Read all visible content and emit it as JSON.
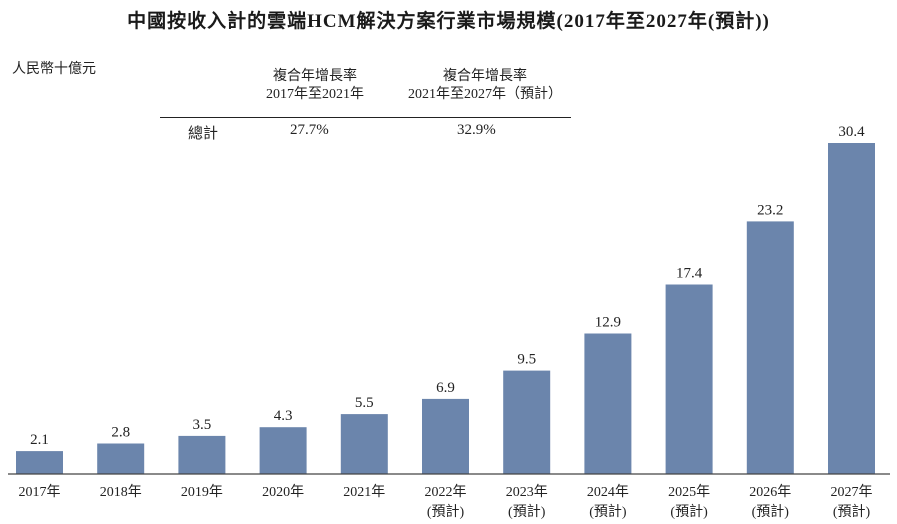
{
  "title": "中國按收入計的雲端HCM解決方案行業市場規模(2017年至2027年(預計))",
  "unit_label": "人民幣十億元",
  "cagr_table": {
    "col1_line1": "複合年增長率",
    "col1_line2": "2017年至2021年",
    "col2_line1": "複合年增長率",
    "col2_line2": "2021年至2027年（預計）",
    "row_label": "總計",
    "col1_value": "27.7%",
    "col2_value": "32.9%"
  },
  "colors": {
    "bar": "#6b85ac",
    "axis": "#444444"
  },
  "chart_data": {
    "type": "bar",
    "categories": [
      [
        "2017年"
      ],
      [
        "2018年"
      ],
      [
        "2019年"
      ],
      [
        "2020年"
      ],
      [
        "2021年"
      ],
      [
        "2022年",
        "(預計)"
      ],
      [
        "2023年",
        "(預計)"
      ],
      [
        "2024年",
        "(預計)"
      ],
      [
        "2025年",
        "(預計)"
      ],
      [
        "2026年",
        "(預計)"
      ],
      [
        "2027年",
        "(預計)"
      ]
    ],
    "values": [
      2.1,
      2.8,
      3.5,
      4.3,
      5.5,
      6.9,
      9.5,
      12.9,
      17.4,
      23.2,
      30.4
    ],
    "value_labels": [
      "2.1",
      "2.8",
      "3.5",
      "4.3",
      "5.5",
      "6.9",
      "9.5",
      "12.9",
      "17.4",
      "23.2",
      "30.4"
    ],
    "ylim": [
      0,
      30.4
    ],
    "grid": false,
    "legend": "none"
  }
}
